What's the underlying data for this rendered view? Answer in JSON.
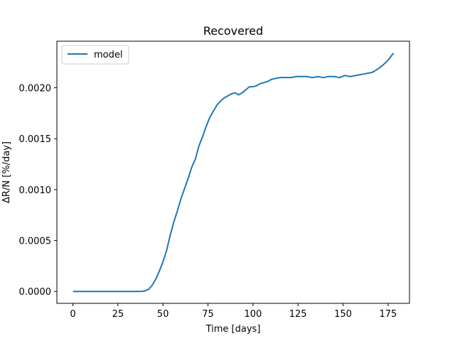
{
  "chart_data": {
    "type": "line",
    "title": "Recovered",
    "xlabel": "Time [days]",
    "ylabel": "ΔR/N [%/day]",
    "xlim": [
      -8.9,
      186.9
    ],
    "ylim": [
      -0.000117,
      0.002457
    ],
    "xticks": [
      0,
      25,
      50,
      75,
      100,
      125,
      150,
      175
    ],
    "xtick_labels": [
      "0",
      "25",
      "50",
      "75",
      "100",
      "125",
      "150",
      "175"
    ],
    "yticks": [
      0,
      0.0005,
      0.001,
      0.0015,
      0.002
    ],
    "ytick_labels": [
      "0.0000",
      "0.0005",
      "0.0010",
      "0.0015",
      "0.0020"
    ],
    "grid": false,
    "legend": {
      "position": "upper left",
      "entries": [
        "model"
      ]
    },
    "series": [
      {
        "name": "model",
        "color": "#1f77b4",
        "x": [
          0,
          10,
          20,
          30,
          38,
          40,
          42,
          44,
          46,
          48,
          50,
          52,
          54,
          56,
          58,
          60,
          62,
          64,
          66,
          68,
          70,
          72,
          74,
          76,
          78,
          80,
          82,
          84,
          86,
          88,
          90,
          92,
          94,
          96,
          98,
          100,
          102,
          104,
          106,
          108,
          110,
          112,
          115,
          118,
          121,
          124,
          127,
          130,
          133,
          136,
          139,
          142,
          145,
          148,
          151,
          154,
          157,
          160,
          163,
          166,
          169,
          172,
          175,
          178
        ],
        "y": [
          0,
          0,
          0,
          0,
          0,
          5e-06,
          2e-05,
          6e-05,
          0.00012,
          0.0002,
          0.00029,
          0.0004,
          0.00055,
          0.00068,
          0.00079,
          0.00091,
          0.00101,
          0.00111,
          0.00122,
          0.0013,
          0.00143,
          0.00152,
          0.00162,
          0.00171,
          0.00177,
          0.00183,
          0.00187,
          0.0019,
          0.00192,
          0.00194,
          0.00195,
          0.00193,
          0.00195,
          0.00198,
          0.00201,
          0.00201,
          0.00202,
          0.00204,
          0.00205,
          0.00206,
          0.00208,
          0.00209,
          0.0021,
          0.0021,
          0.0021,
          0.00211,
          0.00211,
          0.00211,
          0.0021,
          0.00211,
          0.0021,
          0.00211,
          0.00211,
          0.0021,
          0.00212,
          0.00211,
          0.00212,
          0.00213,
          0.00214,
          0.00215,
          0.00218,
          0.00222,
          0.00227,
          0.00234
        ]
      }
    ]
  }
}
